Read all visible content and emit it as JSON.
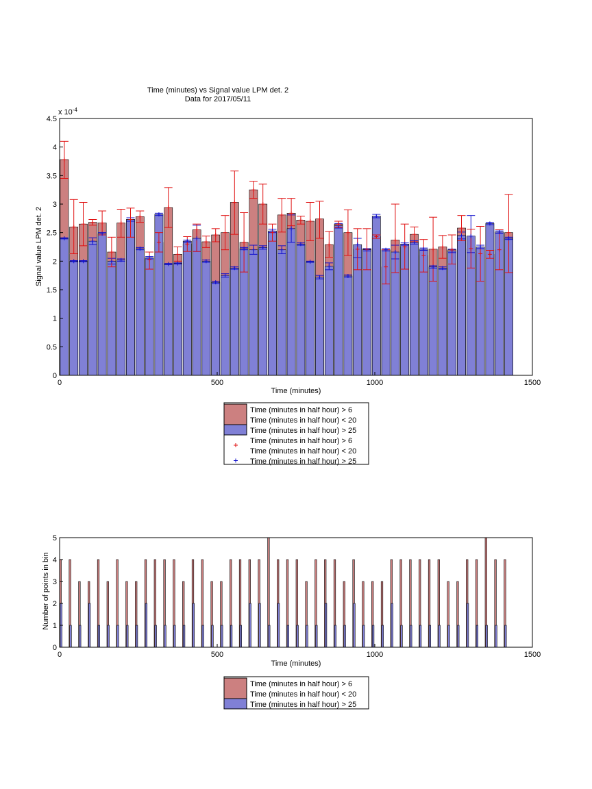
{
  "colors": {
    "red_bar": "#cc8080",
    "blue_bar": "#8080d6",
    "red_marker": "#e01010",
    "blue_marker": "#1010cc"
  },
  "chart_data": [
    {
      "type": "bar",
      "title": "Time (minutes) vs Signal value LPM det. 2",
      "subtitle": "Data for 2017/05/11",
      "xlabel": "Time (minutes)",
      "ylabel": "Signal value LPM det. 2",
      "y_exponent": "x 10",
      "y_exponent_power": "-4",
      "xlim": [
        0,
        1500
      ],
      "ylim": [
        0,
        4.5
      ],
      "xticks": [
        0,
        500,
        1000,
        1500
      ],
      "yticks": [
        0,
        0.5,
        1,
        1.5,
        2,
        2.5,
        3,
        3.5,
        4,
        4.5
      ],
      "bin_width": 30,
      "series": [
        {
          "name": "Time (minutes in half hour) > 6 Time (minutes in half hour) < 20",
          "kind": "bar",
          "x": [
            15,
            45,
            75,
            105,
            135,
            165,
            195,
            225,
            255,
            285,
            315,
            345,
            375,
            405,
            435,
            465,
            495,
            525,
            555,
            585,
            615,
            645,
            675,
            705,
            735,
            765,
            795,
            825,
            855,
            885,
            915,
            945,
            975,
            1005,
            1035,
            1065,
            1095,
            1125,
            1155,
            1185,
            1215,
            1245,
            1275,
            1305,
            1335,
            1365,
            1395,
            1425
          ],
          "values": [
            3.78,
            2.6,
            2.65,
            2.68,
            2.67,
            2.16,
            2.67,
            2.73,
            2.78,
            2.03,
            2.33,
            2.94,
            2.12,
            2.3,
            2.55,
            2.34,
            2.46,
            2.5,
            3.03,
            2.33,
            3.25,
            3.0,
            2.5,
            2.81,
            2.84,
            2.72,
            2.7,
            2.74,
            2.29,
            2.65,
            2.5,
            2.21,
            2.21,
            2.43,
            1.9,
            2.37,
            2.25,
            2.47,
            2.1,
            2.21,
            2.25,
            2.2,
            2.58,
            2.22,
            2.13,
            2.12,
            2.2,
            2.5
          ],
          "err_low": [
            3.45,
            2.13,
            2.27,
            2.63,
            2.46,
            1.9,
            2.42,
            2.42,
            2.68,
            1.86,
            2.16,
            2.59,
            2.0,
            2.17,
            2.17,
            2.24,
            2.34,
            2.2,
            2.47,
            1.81,
            3.1,
            2.65,
            2.35,
            2.51,
            2.62,
            2.65,
            2.36,
            2.4,
            2.07,
            2.59,
            2.1,
            1.85,
            1.85,
            2.4,
            1.6,
            1.8,
            1.86,
            2.34,
            1.81,
            1.65,
            2.05,
            1.95,
            2.36,
            1.88,
            1.65,
            2.05,
            1.85,
            1.8
          ],
          "err_high": [
            4.1,
            3.08,
            3.03,
            2.73,
            2.88,
            2.42,
            2.91,
            2.93,
            2.88,
            2.16,
            2.5,
            3.29,
            2.25,
            2.43,
            2.65,
            2.44,
            2.57,
            2.8,
            3.58,
            2.85,
            3.4,
            3.35,
            2.65,
            3.1,
            3.1,
            2.79,
            3.03,
            3.05,
            2.52,
            2.7,
            2.9,
            2.57,
            2.57,
            2.46,
            2.2,
            3.0,
            2.65,
            2.6,
            2.38,
            2.77,
            2.45,
            2.46,
            2.8,
            2.56,
            2.61,
            2.19,
            2.55,
            3.17
          ]
        },
        {
          "name": "Time (minutes in half hour) > 25",
          "kind": "bar",
          "x": [
            15,
            45,
            75,
            105,
            135,
            165,
            195,
            225,
            255,
            285,
            315,
            345,
            375,
            405,
            435,
            465,
            495,
            525,
            555,
            585,
            615,
            645,
            675,
            705,
            735,
            765,
            795,
            825,
            855,
            885,
            915,
            945,
            975,
            1005,
            1035,
            1065,
            1095,
            1125,
            1155,
            1185,
            1215,
            1245,
            1275,
            1305,
            1335,
            1365,
            1395,
            1425
          ],
          "values": [
            2.4,
            2.0,
            2.0,
            2.35,
            2.48,
            2.0,
            2.02,
            2.73,
            2.22,
            2.06,
            2.82,
            1.95,
            1.96,
            2.35,
            2.4,
            2.0,
            1.63,
            1.75,
            1.88,
            2.22,
            2.2,
            2.24,
            2.53,
            2.2,
            2.57,
            2.3,
            1.99,
            1.72,
            1.91,
            2.62,
            1.74,
            2.29,
            2.2,
            2.79,
            2.2,
            2.16,
            2.3,
            2.33,
            2.21,
            1.9,
            1.88,
            2.18,
            2.45,
            2.44,
            2.25,
            2.66,
            2.51,
            2.4
          ],
          "err_low": [
            2.39,
            1.99,
            1.99,
            2.29,
            2.46,
            1.95,
            2.0,
            2.7,
            2.2,
            2.04,
            2.8,
            1.94,
            1.95,
            2.33,
            2.17,
            1.98,
            1.61,
            1.72,
            1.86,
            2.2,
            2.12,
            2.21,
            2.5,
            2.13,
            2.33,
            2.28,
            1.98,
            1.69,
            1.85,
            2.58,
            1.72,
            2.06,
            2.18,
            2.76,
            2.18,
            2.04,
            2.28,
            2.3,
            2.19,
            1.88,
            1.86,
            2.15,
            2.39,
            2.15,
            2.22,
            2.64,
            2.49,
            2.38
          ],
          "err_high": [
            2.41,
            2.01,
            2.01,
            2.41,
            2.5,
            2.05,
            2.04,
            2.76,
            2.24,
            2.08,
            2.84,
            1.96,
            1.97,
            2.37,
            2.63,
            2.02,
            1.65,
            1.78,
            1.9,
            2.24,
            2.28,
            2.27,
            2.56,
            2.27,
            2.81,
            2.32,
            2.0,
            1.75,
            1.97,
            2.66,
            1.76,
            2.4,
            2.22,
            2.82,
            2.22,
            2.28,
            2.32,
            2.36,
            2.23,
            1.92,
            1.9,
            2.21,
            2.51,
            2.8,
            2.28,
            2.68,
            2.53,
            2.42
          ]
        },
        {
          "name": "Time (minutes in half hour) > 6 Time (minutes in half hour) < 20",
          "kind": "marker",
          "x": [
            15,
            45,
            75,
            105,
            135,
            165,
            195,
            225,
            255,
            285,
            315,
            345,
            375,
            405,
            435,
            465,
            495,
            525,
            555,
            585,
            615,
            645,
            675,
            705,
            735,
            765,
            795,
            825,
            855,
            885,
            915,
            945,
            975,
            1005,
            1035,
            1065,
            1095,
            1125,
            1155,
            1185,
            1215,
            1245,
            1275,
            1305,
            1335,
            1365,
            1395,
            1425
          ],
          "values": [
            3.78,
            2.6,
            2.65,
            2.68,
            2.67,
            2.16,
            2.67,
            2.73,
            2.78,
            2.03,
            2.33,
            2.94,
            2.12,
            2.3,
            2.55,
            2.34,
            2.46,
            2.5,
            3.03,
            2.33,
            3.25,
            3.0,
            2.5,
            2.81,
            2.84,
            2.72,
            2.7,
            2.74,
            2.29,
            2.65,
            2.5,
            2.21,
            2.21,
            2.43,
            1.9,
            2.37,
            2.25,
            2.47,
            2.1,
            2.21,
            2.25,
            2.2,
            2.58,
            2.22,
            2.13,
            2.12,
            2.2,
            2.5
          ]
        },
        {
          "name": "Time (minutes in half hour) > 25",
          "kind": "marker",
          "x": [
            15,
            45,
            75,
            105,
            135,
            165,
            195,
            225,
            255,
            285,
            315,
            345,
            375,
            405,
            435,
            465,
            495,
            525,
            555,
            585,
            615,
            645,
            675,
            705,
            735,
            765,
            795,
            825,
            855,
            885,
            915,
            945,
            975,
            1005,
            1035,
            1065,
            1095,
            1125,
            1155,
            1185,
            1215,
            1245,
            1275,
            1305,
            1335,
            1365,
            1395,
            1425
          ],
          "values": [
            2.4,
            2.0,
            2.0,
            2.35,
            2.48,
            2.0,
            2.02,
            2.73,
            2.22,
            2.06,
            2.82,
            1.95,
            1.96,
            2.35,
            2.4,
            2.0,
            1.63,
            1.75,
            1.88,
            2.22,
            2.2,
            2.24,
            2.53,
            2.2,
            2.57,
            2.3,
            1.99,
            1.72,
            1.91,
            2.62,
            1.74,
            2.29,
            2.2,
            2.79,
            2.2,
            2.16,
            2.3,
            2.33,
            2.21,
            1.9,
            1.88,
            2.18,
            2.45,
            2.44,
            2.25,
            2.66,
            2.51,
            2.4
          ]
        }
      ],
      "legend": {
        "placement": "below",
        "entries": [
          {
            "kind": "bar",
            "color": "#cc8080",
            "lines": [
              "Time (minutes in half hour) > 6",
              "Time (minutes in half hour) < 20"
            ]
          },
          {
            "kind": "bar",
            "color": "#8080d6",
            "lines": [
              "Time (minutes in half hour) > 25"
            ]
          },
          {
            "kind": "marker",
            "color": "#e01010",
            "lines": [
              "Time (minutes in half hour) > 6",
              "Time (minutes in half hour) < 20"
            ]
          },
          {
            "kind": "marker",
            "color": "#1010cc",
            "lines": [
              "Time (minutes in half hour) > 25"
            ]
          }
        ]
      },
      "grid": false
    },
    {
      "type": "bar",
      "title": "",
      "xlabel": "Time (minutes)",
      "ylabel": "Number of points in bin",
      "xlim": [
        0,
        1500
      ],
      "ylim": [
        0,
        5
      ],
      "xticks": [
        0,
        500,
        1000,
        1500
      ],
      "yticks": [
        0,
        1,
        2,
        3,
        4,
        5
      ],
      "series": [
        {
          "name": "Time (minutes in half hour) > 6 Time (minutes in half hour) < 20",
          "x": [
            0,
            30,
            60,
            90,
            120,
            150,
            180,
            210,
            240,
            270,
            300,
            330,
            360,
            390,
            420,
            450,
            480,
            510,
            540,
            570,
            600,
            630,
            660,
            690,
            720,
            750,
            780,
            810,
            840,
            870,
            900,
            930,
            960,
            990,
            1020,
            1050,
            1080,
            1110,
            1140,
            1170,
            1200,
            1230,
            1260,
            1290,
            1320,
            1350,
            1380,
            1410
          ],
          "values": [
            4,
            4,
            3,
            3,
            4,
            3,
            4,
            3,
            3,
            4,
            4,
            4,
            4,
            3,
            4,
            4,
            3,
            3,
            4,
            4,
            4,
            4,
            5,
            4,
            4,
            4,
            3,
            4,
            4,
            4,
            3,
            4,
            3,
            3,
            3,
            4,
            4,
            4,
            4,
            4,
            4,
            3,
            3,
            4,
            4,
            5,
            4,
            4
          ]
        },
        {
          "name": "Time (minutes in half hour) > 25",
          "x": [
            15,
            45,
            75,
            105,
            135,
            165,
            195,
            225,
            255,
            285,
            315,
            345,
            375,
            405,
            435,
            465,
            495,
            525,
            555,
            585,
            615,
            645,
            675,
            705,
            735,
            765,
            795,
            825,
            855,
            885,
            915,
            945,
            975,
            1005,
            1035,
            1065,
            1095,
            1125,
            1155,
            1185,
            1215,
            1245,
            1275,
            1305,
            1335,
            1365,
            1395,
            1425
          ],
          "values": [
            2,
            1,
            1,
            2,
            1,
            1,
            1,
            1,
            1,
            2,
            1,
            1,
            1,
            1,
            2,
            1,
            1,
            1,
            1,
            1,
            2,
            2,
            1,
            2,
            1,
            1,
            1,
            1,
            2,
            1,
            1,
            2,
            1,
            1,
            1,
            2,
            1,
            1,
            1,
            1,
            1,
            1,
            1,
            2,
            1,
            1,
            1,
            1
          ]
        }
      ],
      "legend": {
        "placement": "below",
        "entries": [
          {
            "kind": "bar",
            "color": "#cc8080",
            "lines": [
              "Time (minutes in half hour) > 6",
              "Time (minutes in half hour) < 20"
            ]
          },
          {
            "kind": "bar",
            "color": "#8080d6",
            "lines": [
              "Time (minutes in half hour) > 25"
            ]
          }
        ]
      },
      "grid": false
    }
  ]
}
